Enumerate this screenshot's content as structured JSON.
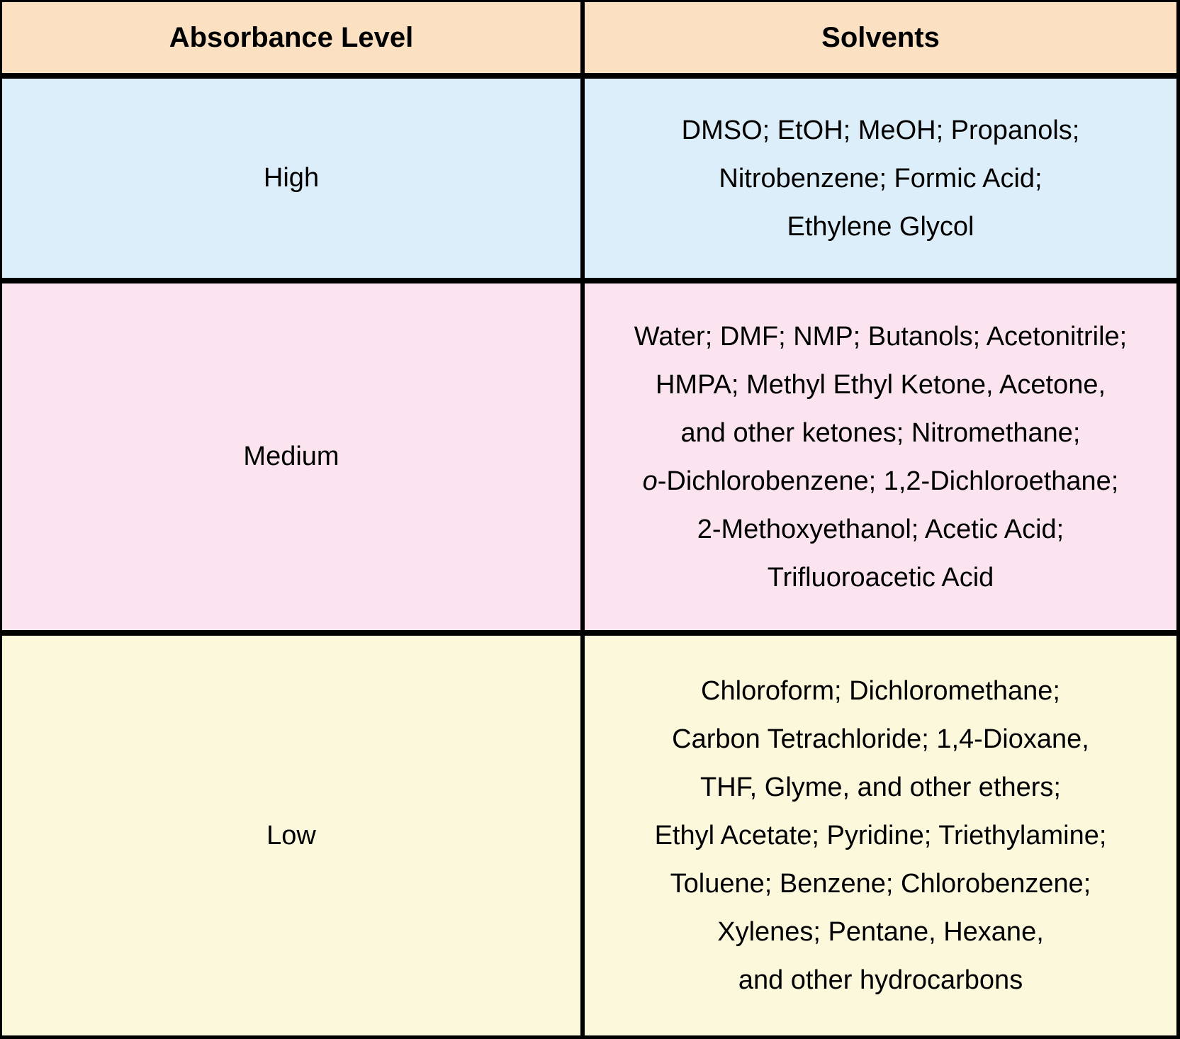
{
  "table": {
    "border_color": "#000000",
    "header_bg": "#FCE0C2",
    "columns": [
      {
        "label": "Absorbance Level"
      },
      {
        "label": "Solvents"
      }
    ],
    "rows": [
      {
        "level": "High",
        "bg": "#DCEEF9",
        "solvent_lines": [
          [
            {
              "text": "DMSO; EtOH; MeOH; Propanols;"
            }
          ],
          [
            {
              "text": "Nitrobenzene; Formic Acid;"
            }
          ],
          [
            {
              "text": "Ethylene Glycol"
            }
          ]
        ]
      },
      {
        "level": "Medium",
        "bg": "#FBE4EF",
        "solvent_lines": [
          [
            {
              "text": "Water; DMF; NMP; Butanols; Acetonitrile;"
            }
          ],
          [
            {
              "text": "HMPA; Methyl Ethyl Ketone, Acetone,"
            }
          ],
          [
            {
              "text": "and other ketones; Nitromethane;"
            }
          ],
          [
            {
              "text": "o",
              "italic": true
            },
            {
              "text": "-Dichlorobenzene; 1,2-Dichloroethane;"
            }
          ],
          [
            {
              "text": "2-Methoxyethanol; Acetic Acid;"
            }
          ],
          [
            {
              "text": "Trifluoroacetic Acid"
            }
          ]
        ]
      },
      {
        "level": "Low",
        "bg": "#FBF8DC",
        "solvent_lines": [
          [
            {
              "text": "Chloroform; Dichloromethane;"
            }
          ],
          [
            {
              "text": "Carbon Tetrachloride; 1,4-Dioxane,"
            }
          ],
          [
            {
              "text": "THF, Glyme, and other ethers;"
            }
          ],
          [
            {
              "text": "Ethyl Acetate; Pyridine; Triethylamine;"
            }
          ],
          [
            {
              "text": "Toluene; Benzene; Chlorobenzene;"
            }
          ],
          [
            {
              "text": "Xylenes; Pentane, Hexane,"
            }
          ],
          [
            {
              "text": "and other hydrocarbons"
            }
          ]
        ]
      }
    ]
  }
}
